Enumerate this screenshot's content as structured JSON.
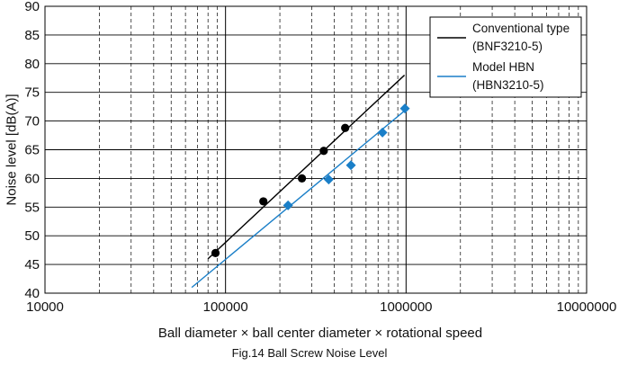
{
  "chart_data": {
    "type": "scatter",
    "xscale": "log",
    "xlim": [
      10000,
      10000000
    ],
    "ylim": [
      40,
      90
    ],
    "xticks": [
      10000,
      100000,
      1000000,
      10000000
    ],
    "xtick_labels": [
      "10000",
      "100000",
      "1000000",
      "10000000"
    ],
    "yticks": [
      40,
      45,
      50,
      55,
      60,
      65,
      70,
      75,
      80,
      85,
      90
    ],
    "ytick_labels": [
      "40",
      "45",
      "50",
      "55",
      "60",
      "65",
      "70",
      "75",
      "80",
      "85",
      "90"
    ],
    "xlabel": "Ball diameter × ball center diameter × rotational speed",
    "ylabel": "Noise level [dB(A)]",
    "grid": true,
    "legend_position": "top-right",
    "series": [
      {
        "name": "Conventional type (BNF3210-5)",
        "legend_lines": [
          "Conventional type",
          "(BNF3210-5)"
        ],
        "color": "#000000",
        "marker": "circle",
        "points": [
          [
            88000,
            47.0
          ],
          [
            162000,
            56.0
          ],
          [
            265000,
            60.0
          ],
          [
            350000,
            64.8
          ],
          [
            460000,
            68.8
          ]
        ],
        "trend_line": [
          [
            80000,
            46.0
          ],
          [
            980000,
            78.0
          ]
        ]
      },
      {
        "name": "Model HBN (HBN3210-5)",
        "legend_lines": [
          "Model HBN",
          "(HBN3210-5)"
        ],
        "color": "#1a7fc8",
        "marker": "diamond",
        "points": [
          [
            222000,
            55.3
          ],
          [
            373000,
            59.8
          ],
          [
            495000,
            62.3
          ],
          [
            740000,
            68.0
          ],
          [
            985000,
            72.2
          ]
        ],
        "trend_line": [
          [
            65000,
            41.0
          ],
          [
            1000000,
            72.0
          ]
        ]
      }
    ]
  },
  "caption": "Fig.14 Ball Screw Noise Level"
}
